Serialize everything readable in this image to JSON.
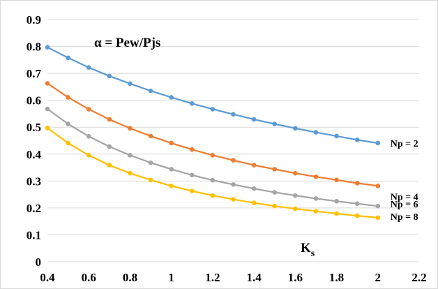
{
  "chart_data": {
    "type": "line",
    "title": "α = Pew/Pjs",
    "xlabel_main": "K",
    "xlabel_sub": "s",
    "ylabel": "",
    "xlim": [
      0.4,
      2.2
    ],
    "ylim": [
      0,
      0.9
    ],
    "x_ticks": [
      "0.4",
      "0.6",
      "0.8",
      "1",
      "1.2",
      "1.4",
      "1.6",
      "1.8",
      "2",
      "2.2"
    ],
    "y_ticks": [
      "0",
      "0.1",
      "0.2",
      "0.3",
      "0.4",
      "0.5",
      "0.6",
      "0.7",
      "0.8",
      "0.9"
    ],
    "grid": "horizontal",
    "legend": "none",
    "x": [
      0.4,
      0.5,
      0.6,
      0.7,
      0.8,
      0.9,
      1.0,
      1.1,
      1.2,
      1.3,
      1.4,
      1.5,
      1.6,
      1.7,
      1.8,
      1.9,
      2.0
    ],
    "series": [
      {
        "name": "Np = 2",
        "color": "#5b9bd5",
        "values": [
          0.797,
          0.758,
          0.722,
          0.69,
          0.662,
          0.635,
          0.611,
          0.588,
          0.567,
          0.548,
          0.529,
          0.512,
          0.496,
          0.481,
          0.467,
          0.453,
          0.441
        ]
      },
      {
        "name": "Np = 4",
        "color": "#ed7d31",
        "values": [
          0.663,
          0.611,
          0.567,
          0.529,
          0.496,
          0.467,
          0.441,
          0.417,
          0.396,
          0.377,
          0.359,
          0.344,
          0.329,
          0.316,
          0.304,
          0.292,
          0.282
        ]
      },
      {
        "name": "Np = 6",
        "color": "#a5a5a5",
        "values": [
          0.568,
          0.512,
          0.466,
          0.428,
          0.396,
          0.368,
          0.344,
          0.322,
          0.303,
          0.287,
          0.272,
          0.258,
          0.246,
          0.235,
          0.225,
          0.216,
          0.207
        ]
      },
      {
        "name": "Np = 8",
        "color": "#ffc000",
        "values": [
          0.497,
          0.441,
          0.396,
          0.359,
          0.329,
          0.304,
          0.282,
          0.263,
          0.246,
          0.232,
          0.219,
          0.207,
          0.197,
          0.188,
          0.179,
          0.171,
          0.164
        ]
      }
    ],
    "colors": {
      "gridline": "#d9d9d9",
      "axis": "#d9d9d9"
    }
  }
}
